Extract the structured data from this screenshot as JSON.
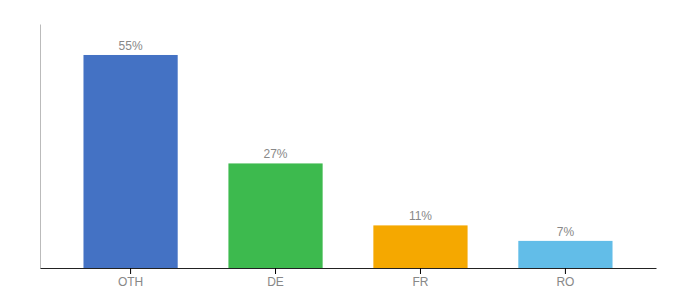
{
  "chart_data": {
    "type": "bar",
    "categories": [
      "OTH",
      "DE",
      "FR",
      "RO"
    ],
    "values": [
      55,
      27,
      11,
      7
    ],
    "value_labels": [
      "55%",
      "27%",
      "11%",
      "7%"
    ],
    "colors": [
      "#4472c4",
      "#3dba4e",
      "#f5a800",
      "#62bde8"
    ],
    "ylim": [
      0,
      63
    ],
    "data_labels": true,
    "tick_labels": "x"
  }
}
